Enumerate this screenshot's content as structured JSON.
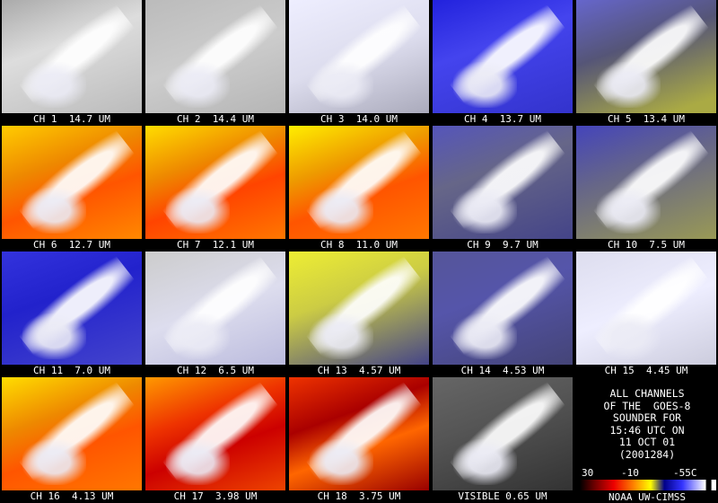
{
  "panels": [
    {
      "label": "CH 1  14.7 UM"
    },
    {
      "label": "CH 2  14.4 UM"
    },
    {
      "label": "CH 3  14.0 UM"
    },
    {
      "label": "CH 4  13.7 UM"
    },
    {
      "label": "CH 5  13.4 UM"
    },
    {
      "label": "CH 6  12.7 UM"
    },
    {
      "label": "CH 7  12.1 UM"
    },
    {
      "label": "CH 8  11.0 UM"
    },
    {
      "label": "CH 9  9.7 UM"
    },
    {
      "label": "CH 10  7.5 UM"
    },
    {
      "label": "CH 11  7.0 UM"
    },
    {
      "label": "CH 12  6.5 UM"
    },
    {
      "label": "CH 13  4.57 UM"
    },
    {
      "label": "CH 14  4.53 UM"
    },
    {
      "label": "CH 15  4.45 UM"
    },
    {
      "label": "CH 16  4.13 UM"
    },
    {
      "label": "CH 17  3.98 UM"
    },
    {
      "label": "CH 18  3.75 UM"
    },
    {
      "label": "VISIBLE 0.65 UM"
    }
  ],
  "info": {
    "lines": [
      "ALL CHANNELS",
      "OF THE  GOES-8",
      "SOUNDER FOR",
      "15:46 UTC ON",
      "11 OCT 01",
      "(2001284)"
    ],
    "colorbar_labels": [
      "30",
      "-10",
      "-55C"
    ],
    "credit": "NOAA UW-CIMSS"
  }
}
